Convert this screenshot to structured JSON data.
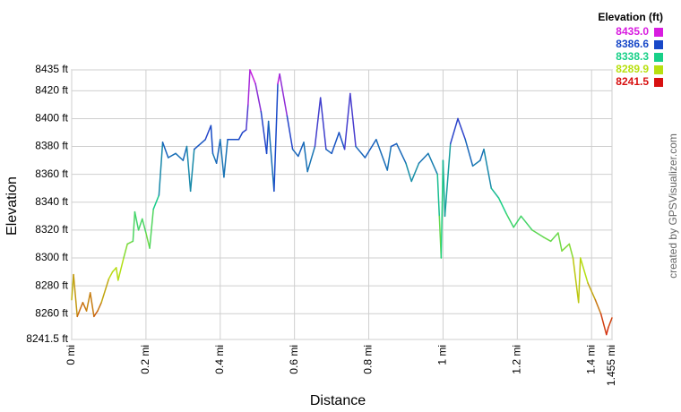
{
  "chart_data": {
    "type": "line",
    "xlabel": "Distance",
    "ylabel": "Elevation",
    "credit": "created by GPSVisualizer.com",
    "legend_title": "Elevation (ft)",
    "color_scale": [
      {
        "value": 8435,
        "label": "8435.0",
        "color": "#d81ce0"
      },
      {
        "value": 8386.6,
        "label": "8386.6",
        "color": "#1848c8"
      },
      {
        "value": 8338.3,
        "label": "8338.3",
        "color": "#18d088"
      },
      {
        "value": 8289.9,
        "label": "8289.9",
        "color": "#b8e010"
      },
      {
        "value": 8241.5,
        "label": "8241.5",
        "color": "#d81010"
      }
    ],
    "grid": true,
    "xlim": [
      0,
      1.455
    ],
    "ylim": [
      8241.5,
      8435
    ],
    "xticks": [
      {
        "value": 0,
        "label": "0 mi"
      },
      {
        "value": 0.2,
        "label": "0.2 mi"
      },
      {
        "value": 0.4,
        "label": "0.4 mi"
      },
      {
        "value": 0.6,
        "label": "0.6 mi"
      },
      {
        "value": 0.8,
        "label": "0.8 mi"
      },
      {
        "value": 1,
        "label": "1 mi"
      },
      {
        "value": 1.2,
        "label": "1.2 mi"
      },
      {
        "value": 1.4,
        "label": "1.4 mi"
      },
      {
        "value": 1.455,
        "label": "1.455 mi"
      }
    ],
    "yticks": [
      {
        "value": 8241.5,
        "label": "8241.5 ft"
      },
      {
        "value": 8260,
        "label": "8260 ft"
      },
      {
        "value": 8280,
        "label": "8280 ft"
      },
      {
        "value": 8300,
        "label": "8300 ft"
      },
      {
        "value": 8320,
        "label": "8320 ft"
      },
      {
        "value": 8340,
        "label": "8340 ft"
      },
      {
        "value": 8360,
        "label": "8360 ft"
      },
      {
        "value": 8380,
        "label": "8380 ft"
      },
      {
        "value": 8400,
        "label": "8400 ft"
      },
      {
        "value": 8420,
        "label": "8420 ft"
      },
      {
        "value": 8435,
        "label": "8435 ft"
      }
    ],
    "x": [
      0,
      0.005,
      0.015,
      0.03,
      0.04,
      0.05,
      0.06,
      0.07,
      0.08,
      0.1,
      0.11,
      0.12,
      0.125,
      0.14,
      0.15,
      0.165,
      0.17,
      0.18,
      0.19,
      0.2,
      0.21,
      0.22,
      0.235,
      0.245,
      0.26,
      0.28,
      0.3,
      0.31,
      0.32,
      0.33,
      0.36,
      0.375,
      0.38,
      0.39,
      0.4,
      0.41,
      0.42,
      0.45,
      0.46,
      0.47,
      0.475,
      0.48,
      0.495,
      0.51,
      0.525,
      0.53,
      0.545,
      0.555,
      0.56,
      0.58,
      0.595,
      0.61,
      0.625,
      0.635,
      0.655,
      0.67,
      0.685,
      0.7,
      0.72,
      0.735,
      0.75,
      0.765,
      0.79,
      0.82,
      0.85,
      0.86,
      0.875,
      0.9,
      0.915,
      0.935,
      0.96,
      0.985,
      0.99,
      0.995,
      1.0,
      1.005,
      1.02,
      1.04,
      1.06,
      1.08,
      1.1,
      1.11,
      1.13,
      1.15,
      1.17,
      1.19,
      1.21,
      1.24,
      1.27,
      1.29,
      1.31,
      1.32,
      1.34,
      1.35,
      1.365,
      1.37,
      1.39,
      1.41,
      1.425,
      1.44,
      1.445,
      1.455
    ],
    "values": [
      8270,
      8288,
      8258,
      8268,
      8262,
      8275,
      8258,
      8262,
      8268,
      8285,
      8290,
      8293,
      8284,
      8300,
      8310,
      8312,
      8333,
      8320,
      8328,
      8318,
      8307,
      8335,
      8345,
      8383,
      8372,
      8375,
      8370,
      8380,
      8348,
      8378,
      8385,
      8395,
      8375,
      8368,
      8385,
      8358,
      8385,
      8385,
      8390,
      8392,
      8410,
      8435,
      8425,
      8405,
      8375,
      8398,
      8348,
      8425,
      8432,
      8402,
      8378,
      8373,
      8383,
      8362,
      8380,
      8415,
      8378,
      8375,
      8390,
      8378,
      8418,
      8380,
      8372,
      8385,
      8363,
      8380,
      8382,
      8368,
      8355,
      8368,
      8375,
      8360,
      8330,
      8300,
      8370,
      8330,
      8382,
      8400,
      8385,
      8366,
      8370,
      8378,
      8350,
      8343,
      8332,
      8322,
      8330,
      8320,
      8315,
      8312,
      8318,
      8305,
      8310,
      8300,
      8268,
      8300,
      8282,
      8270,
      8260,
      8245,
      8250,
      8257
    ]
  }
}
